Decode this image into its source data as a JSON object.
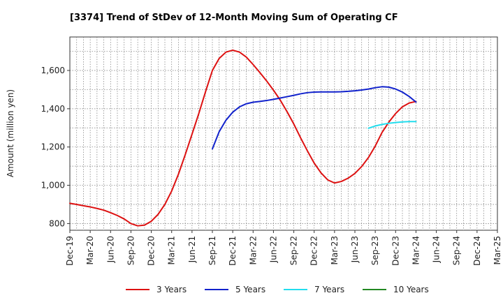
{
  "chart_data": {
    "type": "line",
    "title": "[3374]  Trend of StDev of 12-Month Moving Sum of Operating CF",
    "xlabel": "",
    "ylabel": "Amount (million yen)",
    "ylim": [
      765,
      1775
    ],
    "yticks": [
      800,
      1000,
      1200,
      1400,
      1600
    ],
    "ytick_labels": [
      "800",
      "1,000",
      "1,200",
      "1,400",
      "1,600"
    ],
    "xlim": [
      "Dec-19",
      "Mar-25"
    ],
    "xtick_labels": [
      "Dec-19",
      "Mar-20",
      "Jun-20",
      "Sep-20",
      "Dec-20",
      "Mar-21",
      "Jun-21",
      "Sep-21",
      "Dec-21",
      "Mar-22",
      "Jun-22",
      "Sep-22",
      "Dec-22",
      "Mar-23",
      "Jun-23",
      "Sep-23",
      "Dec-23",
      "Mar-24",
      "Jun-24",
      "Sep-24",
      "Dec-24",
      "Mar-25"
    ],
    "grid": true,
    "legend_position": "bottom",
    "series": [
      {
        "name": "3 Years",
        "color": "#dd1111",
        "x": [
          "Dec-19",
          "Jan-20",
          "Feb-20",
          "Mar-20",
          "Apr-20",
          "May-20",
          "Jun-20",
          "Jul-20",
          "Aug-20",
          "Sep-20",
          "Oct-20",
          "Nov-20",
          "Dec-20",
          "Jan-21",
          "Feb-21",
          "Mar-21",
          "Apr-21",
          "May-21",
          "Jun-21",
          "Jul-21",
          "Aug-21",
          "Sep-21",
          "Oct-21",
          "Nov-21",
          "Dec-21",
          "Jan-22",
          "Feb-22",
          "Mar-22",
          "Apr-22",
          "May-22",
          "Jun-22",
          "Jul-22",
          "Aug-22",
          "Sep-22",
          "Oct-22",
          "Nov-22",
          "Dec-22",
          "Jan-23",
          "Feb-23",
          "Mar-23",
          "Apr-23",
          "May-23",
          "Jun-23",
          "Jul-23",
          "Aug-23",
          "Sep-23",
          "Oct-23",
          "Nov-23",
          "Dec-23",
          "Jan-24",
          "Feb-24",
          "Mar-24"
        ],
        "values": [
          906,
          900,
          893,
          887,
          879,
          870,
          857,
          842,
          824,
          800,
          788,
          792,
          812,
          848,
          900,
          970,
          1058,
          1160,
          1267,
          1375,
          1490,
          1600,
          1663,
          1696,
          1706,
          1696,
          1670,
          1631,
          1589,
          1545,
          1497,
          1445,
          1385,
          1320,
          1248,
          1180,
          1116,
          1065,
          1028,
          1012,
          1020,
          1037,
          1062,
          1098,
          1145,
          1205,
          1276,
          1330,
          1375,
          1410,
          1430,
          1438
        ]
      },
      {
        "name": "5 Years",
        "color": "#1122cc",
        "x": [
          "Sep-21",
          "Oct-21",
          "Nov-21",
          "Dec-21",
          "Jan-22",
          "Feb-22",
          "Mar-22",
          "Apr-22",
          "May-22",
          "Jun-22",
          "Jul-22",
          "Aug-22",
          "Sep-22",
          "Oct-22",
          "Nov-22",
          "Dec-22",
          "Jan-23",
          "Feb-23",
          "Mar-23",
          "Apr-23",
          "May-23",
          "Jun-23",
          "Jul-23",
          "Aug-23",
          "Sep-23",
          "Oct-23",
          "Nov-23",
          "Dec-23",
          "Jan-24",
          "Feb-24",
          "Mar-24"
        ],
        "values": [
          1190,
          1280,
          1340,
          1382,
          1410,
          1426,
          1434,
          1438,
          1443,
          1449,
          1456,
          1463,
          1470,
          1478,
          1484,
          1487,
          1488,
          1488,
          1488,
          1489,
          1491,
          1494,
          1498,
          1503,
          1510,
          1515,
          1513,
          1503,
          1487,
          1464,
          1435
        ]
      },
      {
        "name": "7 Years",
        "color": "#22ddee",
        "x": [
          "Aug-23",
          "Sep-23",
          "Oct-23",
          "Nov-23",
          "Dec-23",
          "Jan-24",
          "Feb-24",
          "Mar-24"
        ],
        "values": [
          1298,
          1310,
          1318,
          1324,
          1328,
          1331,
          1333,
          1333
        ]
      },
      {
        "name": "10 Years",
        "color": "#228822",
        "x": [],
        "values": []
      }
    ]
  }
}
